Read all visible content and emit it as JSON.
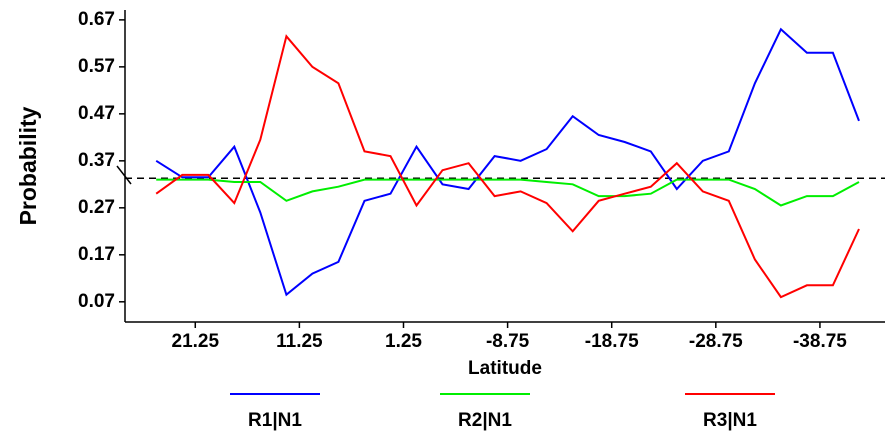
{
  "chart_data": {
    "type": "line",
    "x_label": "Latitude",
    "y_label": "Probability",
    "x": [
      25,
      22.5,
      20,
      17.5,
      15,
      12.5,
      10,
      7.5,
      5,
      2.5,
      0,
      -2.5,
      -5,
      -7.5,
      -10,
      -12.5,
      -15,
      -17.5,
      -20,
      -22.5,
      -25,
      -27.5,
      -30,
      -32.5,
      -35,
      -37.5,
      -40,
      -42.5
    ],
    "series": [
      {
        "name": "R1|N1",
        "color": "#0000ff",
        "values": [
          0.37,
          0.335,
          0.335,
          0.4,
          0.26,
          0.085,
          0.13,
          0.155,
          0.285,
          0.3,
          0.4,
          0.32,
          0.31,
          0.38,
          0.37,
          0.395,
          0.465,
          0.425,
          0.41,
          0.39,
          0.31,
          0.37,
          0.39,
          0.535,
          0.65,
          0.6,
          0.6,
          0.455
        ]
      },
      {
        "name": "R2|N1",
        "color": "#00ee00",
        "values": [
          0.33,
          0.33,
          0.33,
          0.325,
          0.325,
          0.285,
          0.305,
          0.315,
          0.33,
          0.33,
          0.33,
          0.33,
          0.33,
          0.33,
          0.33,
          0.325,
          0.32,
          0.295,
          0.295,
          0.3,
          0.33,
          0.33,
          0.33,
          0.31,
          0.275,
          0.295,
          0.295,
          0.325
        ]
      },
      {
        "name": "R3|N1",
        "color": "#ff0000",
        "values": [
          0.3,
          0.34,
          0.34,
          0.28,
          0.415,
          0.635,
          0.57,
          0.535,
          0.39,
          0.38,
          0.275,
          0.35,
          0.365,
          0.295,
          0.305,
          0.28,
          0.22,
          0.285,
          0.3,
          0.315,
          0.365,
          0.305,
          0.285,
          0.16,
          0.08,
          0.105,
          0.105,
          0.225
        ]
      }
    ],
    "reference_line": 0.333,
    "xlim": [
      28,
      -45
    ],
    "ylim": [
      0.027,
      0.691
    ],
    "xticks": [
      21.25,
      11.25,
      1.25,
      -8.75,
      -18.75,
      -28.75,
      -38.75
    ],
    "yticks": [
      0.07,
      0.17,
      0.27,
      0.37,
      0.47,
      0.57,
      0.67
    ]
  }
}
